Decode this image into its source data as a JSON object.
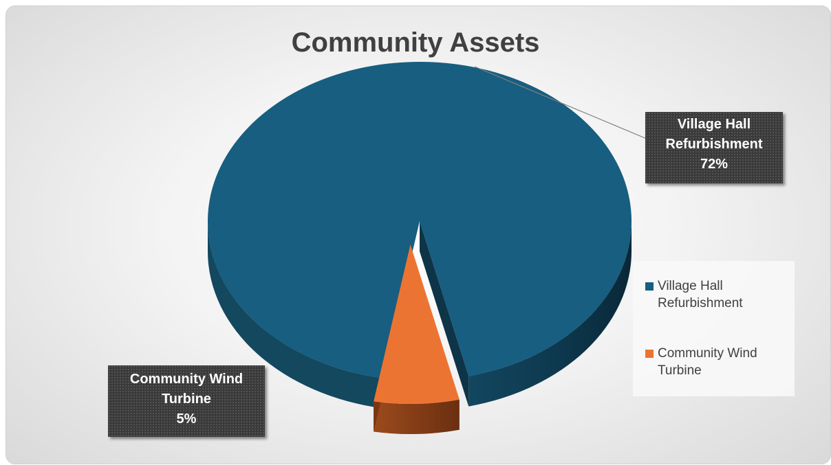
{
  "chart_data": {
    "type": "pie",
    "title": "Community Assets",
    "categories": [
      "Village Hall Refurbishment",
      "Community Wind Turbine"
    ],
    "values": [
      72,
      5
    ],
    "labels": [
      "72%",
      "5%"
    ],
    "colors": [
      "#175E80",
      "#EC7433"
    ],
    "legend_position": "right",
    "style": "3d-exploded"
  },
  "labels": {
    "hall": {
      "line1": "Village Hall",
      "line2": "Refurbishment",
      "pct": "72%"
    },
    "wind": {
      "line1": "Community Wind",
      "line2": "Turbine",
      "pct": "5%"
    }
  },
  "legend": {
    "items": [
      {
        "label": "Village Hall Refurbishment",
        "color": "#175E80"
      },
      {
        "label": "Community Wind Turbine",
        "color": "#EC7433"
      }
    ]
  }
}
